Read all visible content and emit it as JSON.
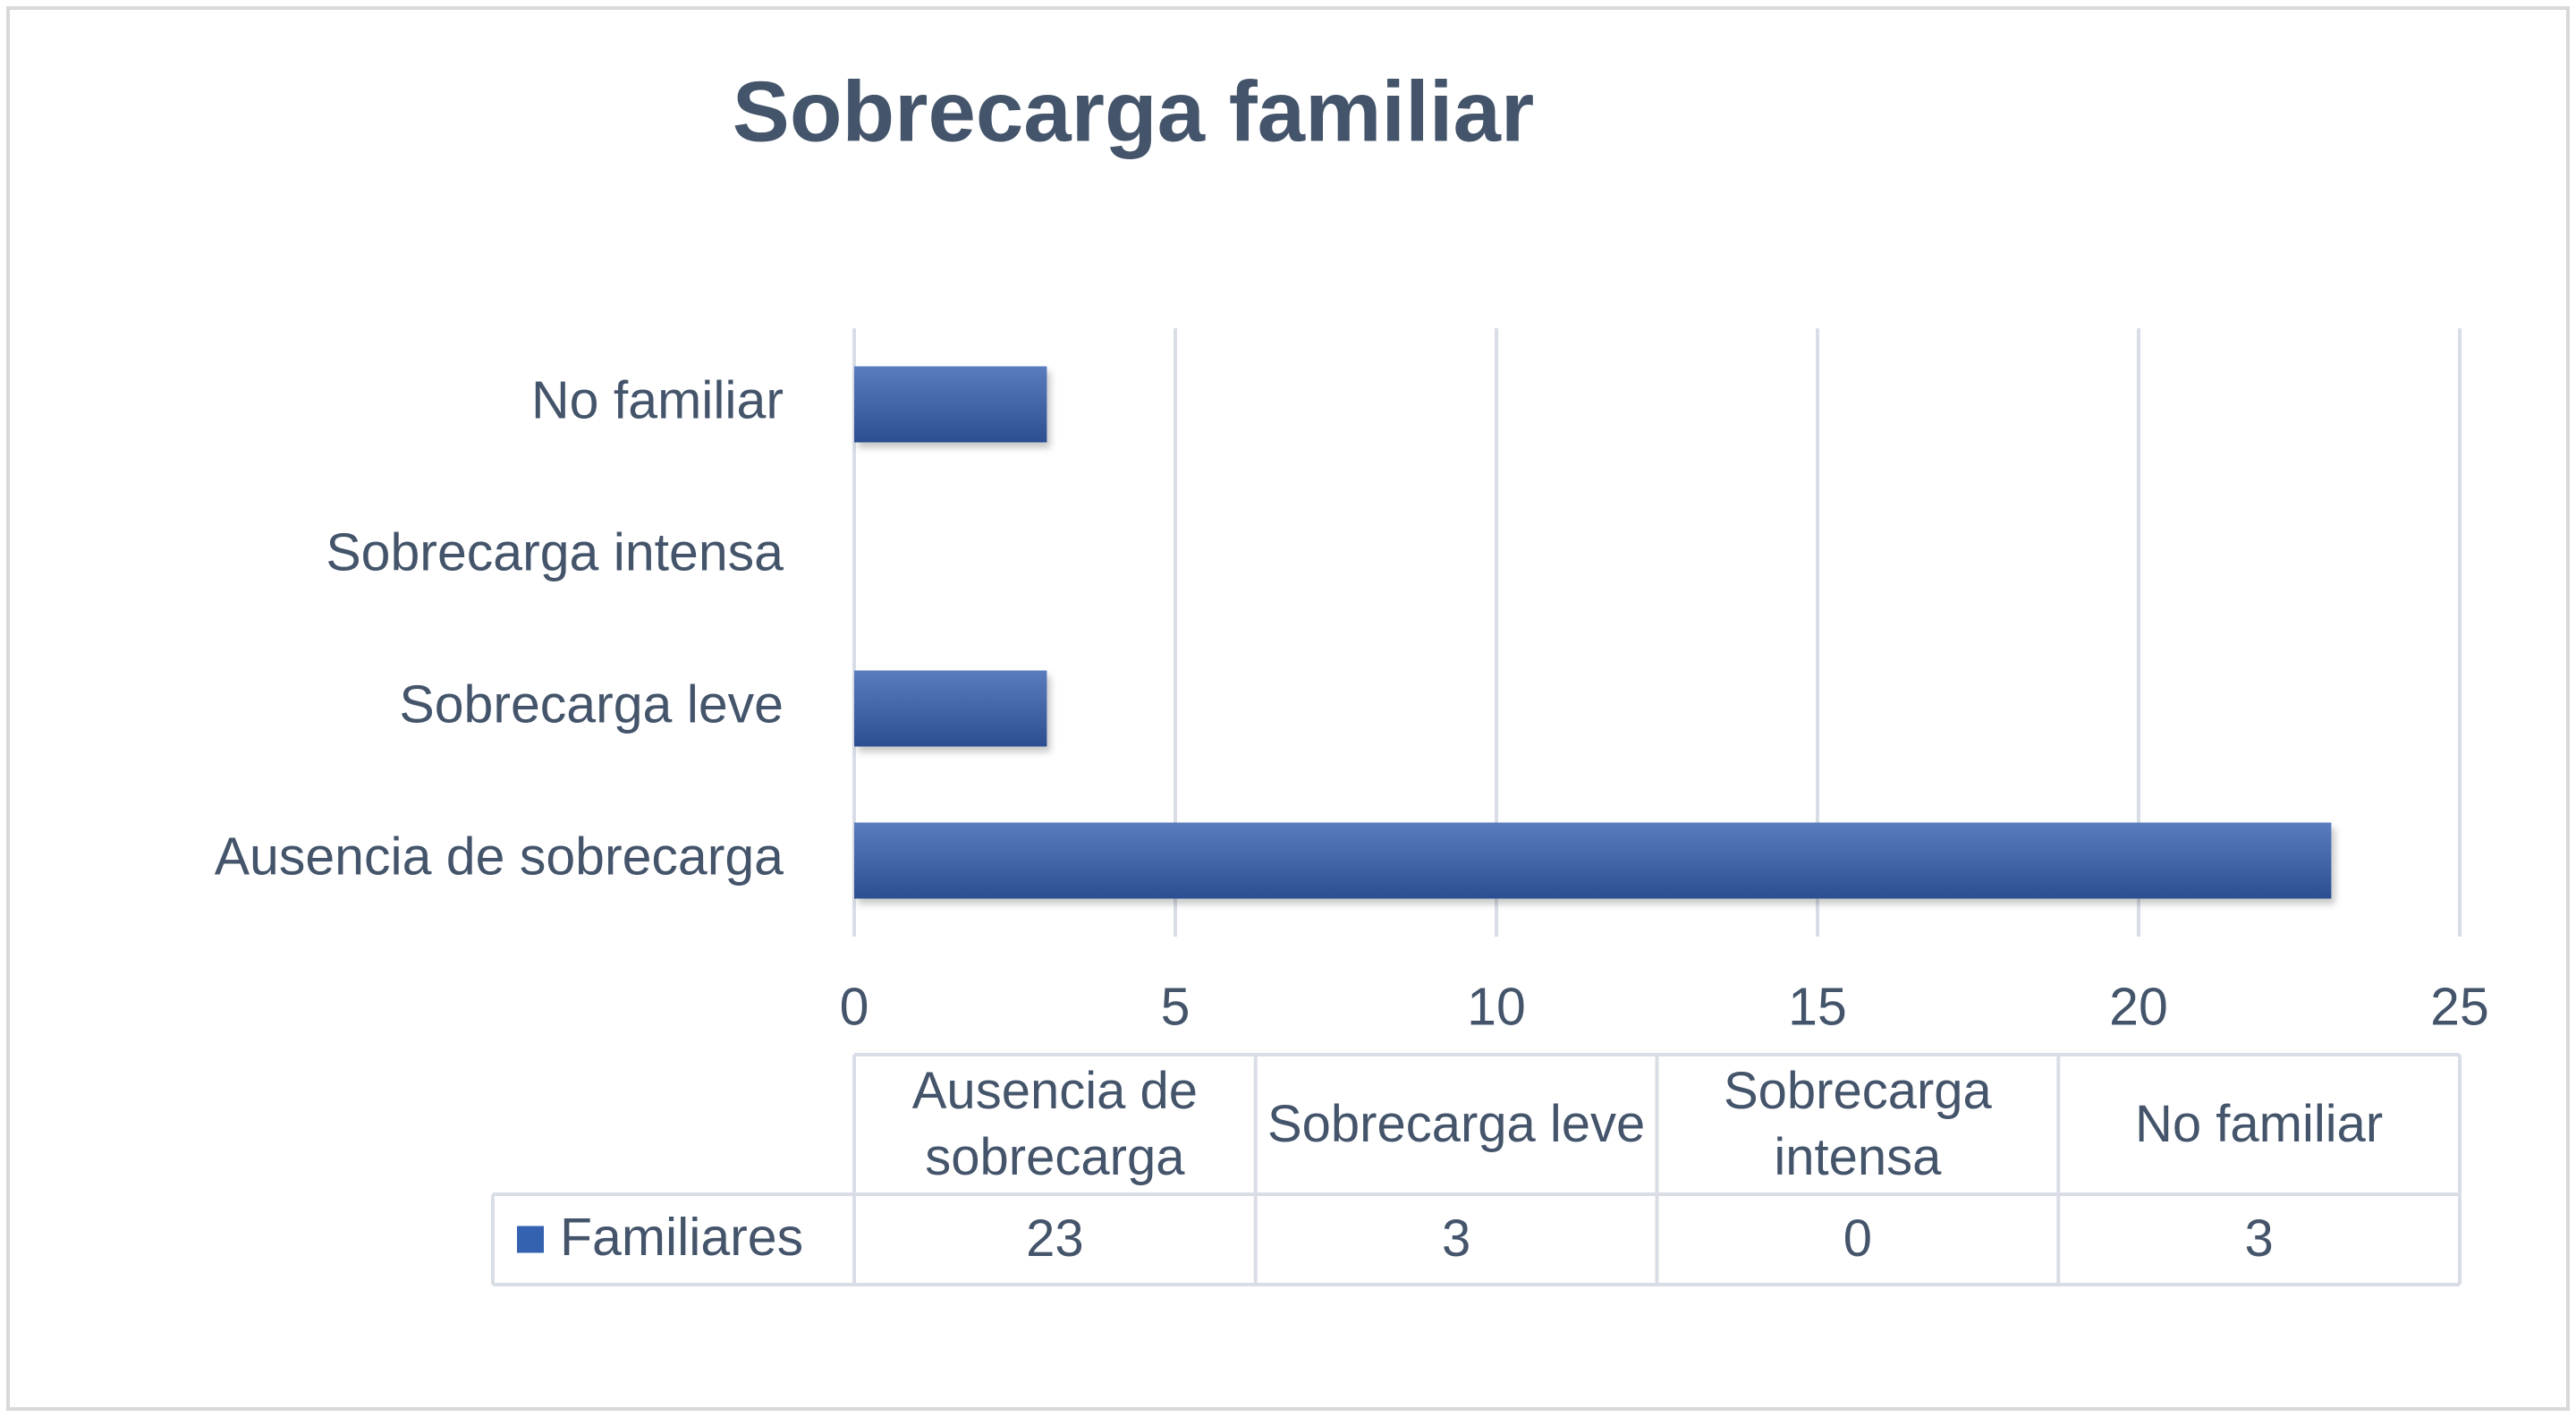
{
  "chart_data": {
    "type": "bar",
    "orientation": "horizontal",
    "title": "Sobrecarga familiar",
    "categories": [
      "Ausencia de sobrecarga",
      "Sobrecarga leve",
      "Sobrecarga intensa",
      "No familiar"
    ],
    "series": [
      {
        "name": "Familiares",
        "color": "#3461b0",
        "values": [
          23,
          3,
          0,
          3
        ]
      }
    ],
    "xlim": [
      0,
      25
    ],
    "xticks": [
      0,
      5,
      10,
      15,
      20,
      25
    ],
    "grid": true,
    "data_table": true
  }
}
